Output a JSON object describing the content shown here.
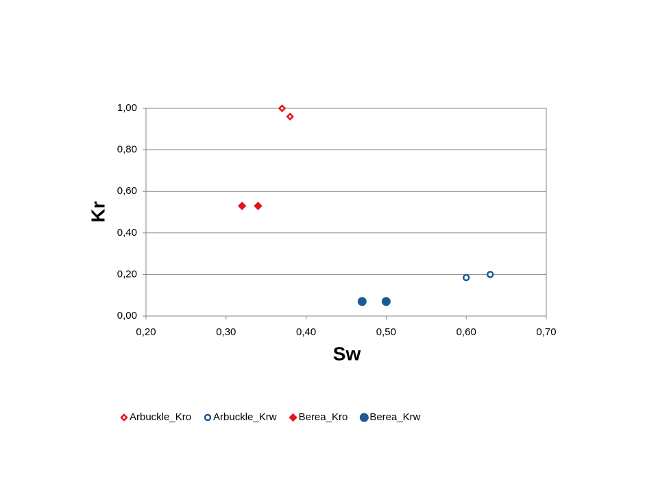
{
  "chart_data": {
    "type": "scatter",
    "x_label": "Sw",
    "y_label": "Kr",
    "xlim": [
      0.2,
      0.7
    ],
    "xticks": [
      {
        "value": 0.2,
        "label": "0,20"
      },
      {
        "value": 0.3,
        "label": "0,30"
      },
      {
        "value": 0.4,
        "label": "0,40"
      },
      {
        "value": 0.5,
        "label": "0,50"
      },
      {
        "value": 0.6,
        "label": "0,60"
      },
      {
        "value": 0.7,
        "label": "0,70"
      }
    ],
    "ylim": [
      0,
      1
    ],
    "yticks": [
      {
        "value": 0,
        "label": "0,00"
      },
      {
        "value": 0.2,
        "label": "0,20"
      },
      {
        "value": 0.4,
        "label": "0,40"
      },
      {
        "value": 0.6,
        "label": "0,60"
      },
      {
        "value": 0.8,
        "label": "0,80"
      },
      {
        "value": 1,
        "label": "1,00"
      }
    ],
    "grid": true,
    "legend": "bottom",
    "series": [
      {
        "name": "Arbuckle_Kro",
        "color": "#e3151b",
        "marker": "diamond",
        "filled": false,
        "x": [
          0.37,
          0.38
        ],
        "values": [
          1.0,
          0.96
        ]
      },
      {
        "name": "Arbuckle_Krw",
        "color": "#1d5a94",
        "marker": "circle",
        "filled": false,
        "x": [
          0.6,
          0.63
        ],
        "values": [
          0.185,
          0.2
        ]
      },
      {
        "name": "Berea_Kro",
        "color": "#e3151b",
        "marker": "diamond",
        "filled": true,
        "x": [
          0.32,
          0.34
        ],
        "values": [
          0.53,
          0.53
        ]
      },
      {
        "name": "Berea_Krw",
        "color": "#1d5a94",
        "marker": "circle",
        "filled": true,
        "x": [
          0.47,
          0.5
        ],
        "values": [
          0.07,
          0.07
        ]
      }
    ]
  }
}
